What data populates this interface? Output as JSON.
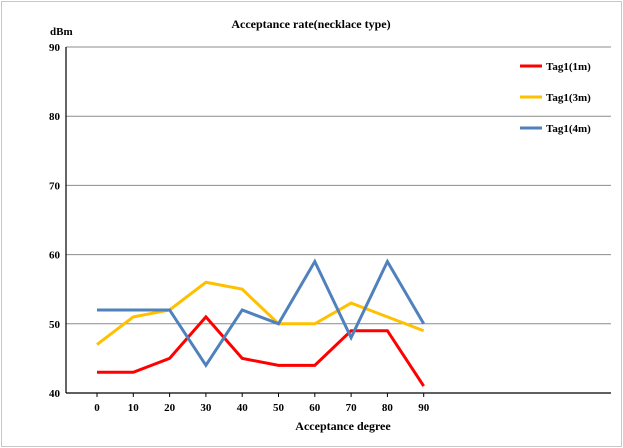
{
  "chart_data": {
    "type": "line",
    "title": "Acceptance rate(necklace type)",
    "xlabel": "Acceptance degree",
    "ylabel": "dBm",
    "x": [
      0,
      10,
      20,
      30,
      40,
      50,
      60,
      70,
      80,
      90
    ],
    "ylim": [
      40,
      90
    ],
    "yticks": [
      40,
      50,
      60,
      70,
      80,
      90
    ],
    "grid": "horizontal",
    "legend": "top-right",
    "series": [
      {
        "name": "Tag1(1m)",
        "color": "#ff0000",
        "values": [
          43,
          43,
          45,
          51,
          45,
          44,
          44,
          49,
          49,
          41
        ]
      },
      {
        "name": "Tag1(3m)",
        "color": "#ffc000",
        "values": [
          47,
          51,
          52,
          56,
          55,
          50,
          50,
          53,
          51,
          49
        ]
      },
      {
        "name": "Tag1(4m)",
        "color": "#4f81bd",
        "values": [
          52,
          52,
          52,
          44,
          52,
          50,
          59,
          48,
          59,
          50
        ]
      }
    ]
  }
}
